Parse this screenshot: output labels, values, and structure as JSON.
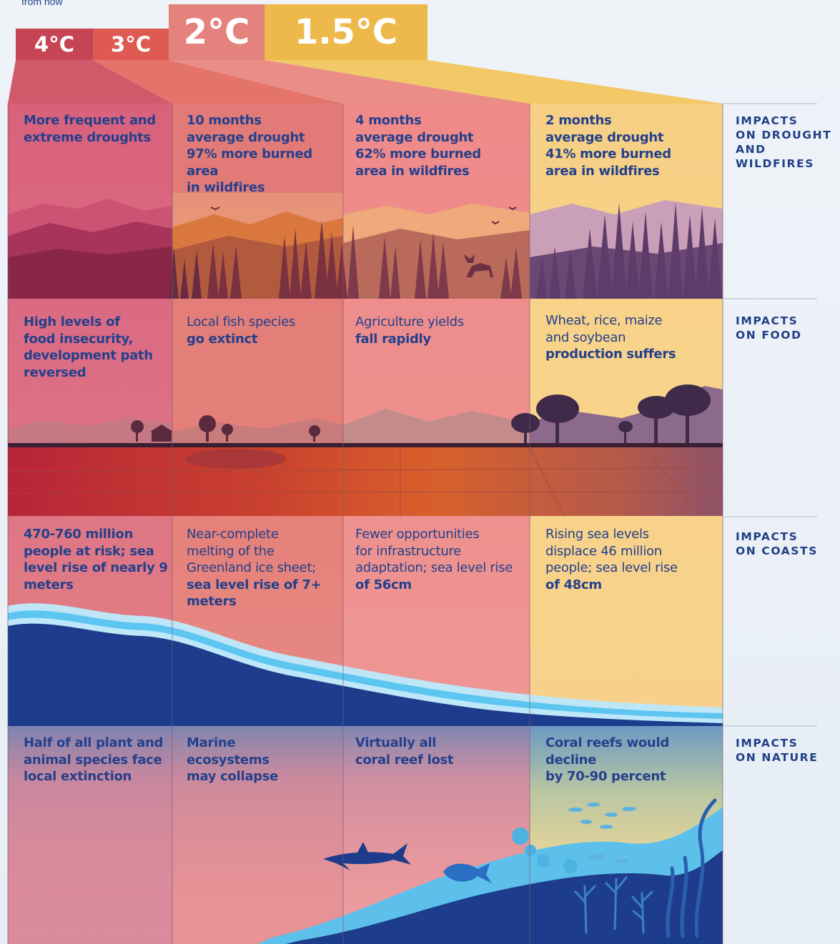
{
  "top_note": "from now",
  "scenarios": [
    {
      "label": "4°C",
      "color": "#c64555"
    },
    {
      "label": "3°C",
      "color": "#df5a52"
    },
    {
      "label": "2°C",
      "color": "#e4827d"
    },
    {
      "label": "1.5°C",
      "color": "#ecb94a"
    }
  ],
  "categories": [
    "IMPACTS\nON DROUGHT\nAND WILDFIRES",
    "IMPACTS\nON FOOD",
    "IMPACTS\nON COASTS",
    "IMPACTS\nON NATURE"
  ],
  "drought": {
    "c4": [
      "More frequent and",
      "extreme droughts"
    ],
    "c3": [
      "10 months",
      "average drought",
      "97% more burned area",
      "in wildfires"
    ],
    "c2": [
      "4 months",
      "average drought",
      "62% more burned",
      "area in wildfires"
    ],
    "c15": [
      "2 months",
      "average drought",
      "41% more burned",
      "area in wildfires"
    ]
  },
  "food": {
    "c4": [
      "High levels of",
      "food insecurity,",
      "development path",
      "reversed"
    ],
    "c3": [
      "Local fish species",
      "go extinct"
    ],
    "c2": [
      "Agriculture yields",
      "fall rapidly"
    ],
    "c15": [
      "Wheat, rice, maize",
      "and soybean",
      "production suffers"
    ]
  },
  "coasts": {
    "c4": [
      "470-760 million",
      "people at risk; sea",
      "level rise of nearly 9",
      "meters"
    ],
    "c3": [
      "Near-complete",
      "melting of the",
      "Greenland ice sheet;",
      "sea level rise of 7+",
      "meters"
    ],
    "c2": [
      "Fewer opportunities",
      "for infrastructure",
      "adaptation; sea level rise",
      "of 56cm"
    ],
    "c15": [
      "Rising sea levels",
      "displace 46 million",
      "people; sea level rise",
      "of 48cm"
    ]
  },
  "nature": {
    "c4": [
      "Half of all plant and",
      "animal species face",
      "local extinction"
    ],
    "c3": [
      "Marine",
      "ecosystems",
      "may collapse"
    ],
    "c2": [
      "Virtually all",
      "coral reef lost"
    ],
    "c15": [
      "Coral reefs would decline",
      "by 70-90 percent"
    ]
  },
  "colors": {
    "text_blue": "#24408c",
    "deep_water": "#1d3d8c",
    "light_water": "#5cc6f0"
  }
}
